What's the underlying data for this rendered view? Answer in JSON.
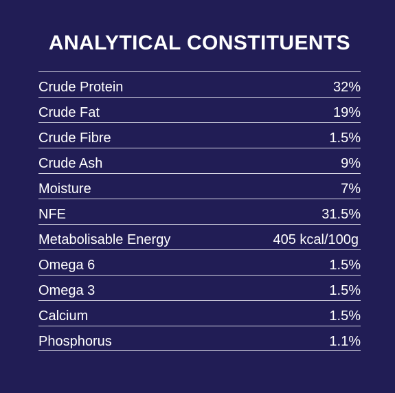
{
  "title": "ANALYTICAL CONSTITUENTS",
  "rows": [
    {
      "label": "Crude Protein",
      "value": "32%"
    },
    {
      "label": "Crude Fat",
      "value": "19%"
    },
    {
      "label": "Crude Fibre",
      "value": "1.5%"
    },
    {
      "label": "Crude Ash",
      "value": "9%"
    },
    {
      "label": "Moisture",
      "value": "7%"
    },
    {
      "label": "NFE",
      "value": "31.5%"
    },
    {
      "label": "Metabolisable Energy",
      "value": "405 kcal/100g"
    },
    {
      "label": "Omega 6",
      "value": "1.5%"
    },
    {
      "label": "Omega 3",
      "value": "1.5%"
    },
    {
      "label": "Calcium",
      "value": "1.5%"
    },
    {
      "label": "Phosphorus",
      "value": "1.1%"
    }
  ],
  "colors": {
    "background": "#211d55",
    "text": "#ffffff",
    "rule": "#d9d8e6"
  }
}
